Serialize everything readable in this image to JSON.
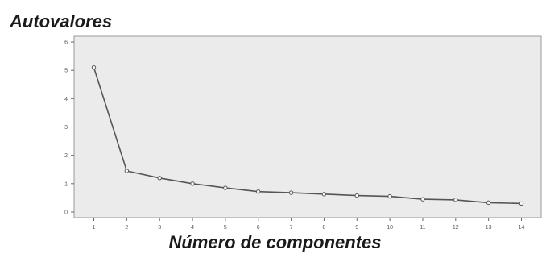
{
  "chart_data": {
    "type": "line",
    "title": "Autovalores",
    "xlabel": "Número de componentes",
    "ylabel": "",
    "x": [
      1,
      2,
      3,
      4,
      5,
      6,
      7,
      8,
      9,
      10,
      11,
      12,
      13,
      14
    ],
    "values": [
      5.1,
      1.45,
      1.2,
      1.0,
      0.85,
      0.72,
      0.68,
      0.63,
      0.58,
      0.55,
      0.45,
      0.43,
      0.33,
      0.3
    ],
    "xlim": [
      0.4,
      14.6
    ],
    "ylim": [
      -0.2,
      6.2
    ],
    "yticks": [
      0,
      1,
      2,
      3,
      4,
      5,
      6
    ],
    "grid": false,
    "background": "#ebebeb",
    "line_color": "#555555"
  }
}
